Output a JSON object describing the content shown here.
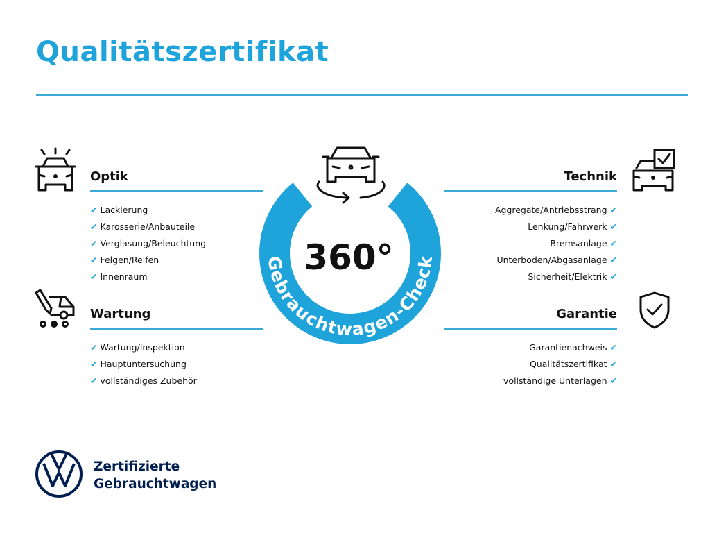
{
  "title": "Qualitätszertifikat",
  "center": {
    "number": "360°",
    "ring_text": "Gebrauchtwagen-Check",
    "icon": "car-rotate-icon"
  },
  "colors": {
    "accent": "#1fa3db",
    "brand": "#001e50"
  },
  "check_glyph": "✔",
  "sections": {
    "optik": {
      "title": "Optik",
      "icon": "car-lights-icon",
      "items": [
        "Lackierung",
        "Karosserie/Anbauteile",
        "Verglasung/Beleuchtung",
        "Felgen/Reifen",
        "Innenraum"
      ]
    },
    "wartung": {
      "title": "Wartung",
      "icon": "service-van-icon",
      "items": [
        "Wartung/Inspektion",
        "Hauptuntersuchung",
        "vollständiges Zubehör"
      ]
    },
    "technik": {
      "title": "Technik",
      "icon": "car-checklist-icon",
      "items": [
        "Aggregate/Antriebsstrang",
        "Lenkung/Fahrwerk",
        "Bremsanlage",
        "Unterboden/Abgasanlage",
        "Sicherheit/Elektrik"
      ]
    },
    "garantie": {
      "title": "Garantie",
      "icon": "shield-check-icon",
      "items": [
        "Garantienachweis",
        "Qualitätszertifikat",
        "vollständige Unterlagen"
      ]
    }
  },
  "footer": {
    "line1": "Zertifizierte",
    "line2": "Gebrauchtwagen",
    "logo": "vw-logo"
  }
}
